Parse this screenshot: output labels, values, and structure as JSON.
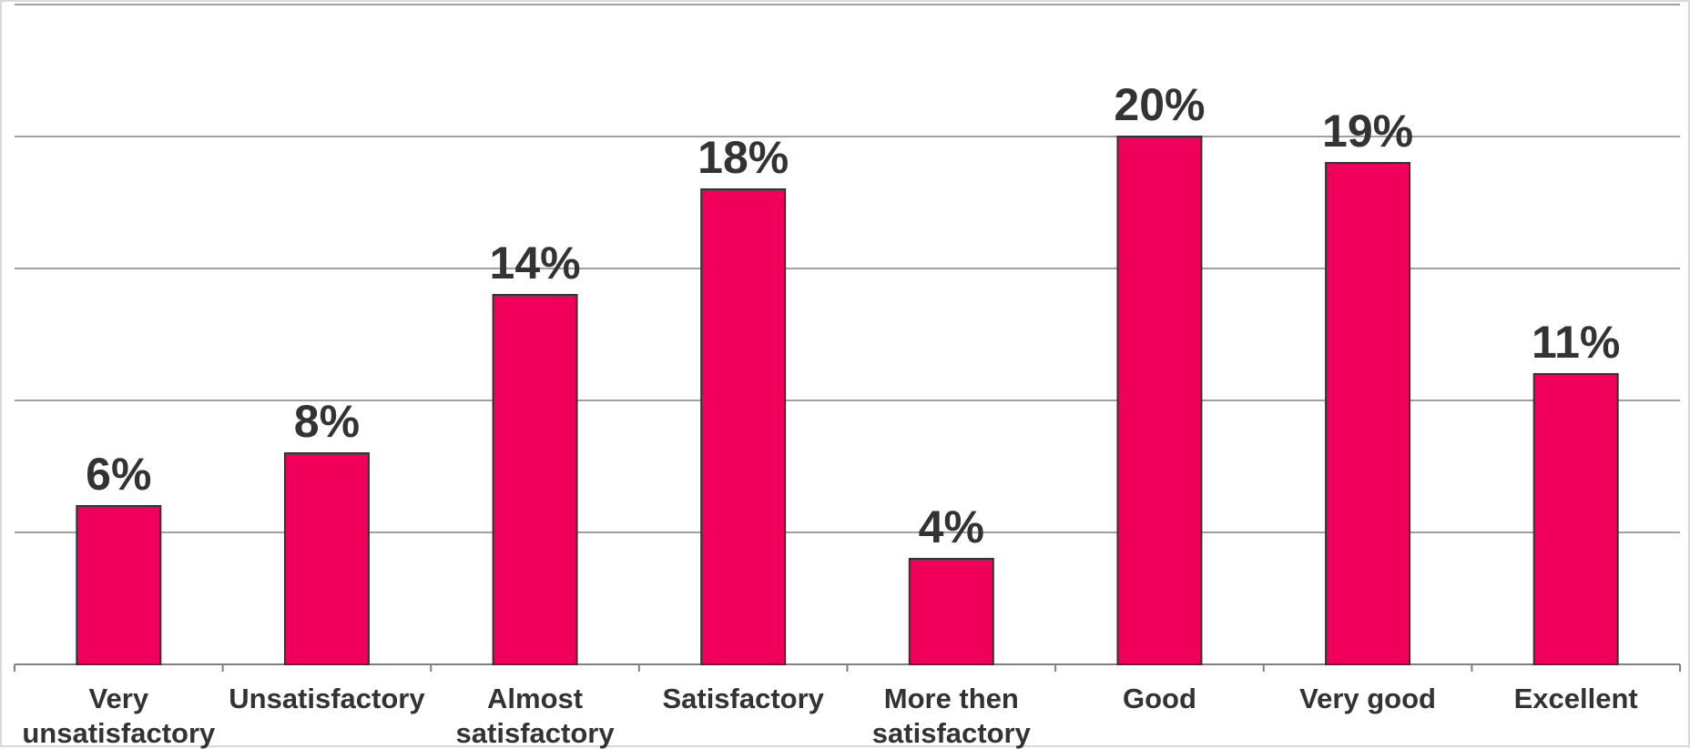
{
  "chart_data": {
    "type": "bar",
    "title": "",
    "xlabel": "",
    "ylabel": "",
    "categories": [
      [
        "Very",
        "unsatisfactory"
      ],
      [
        "Unsatisfactory"
      ],
      [
        "Almost",
        "satisfactory"
      ],
      [
        "Satisfactory"
      ],
      [
        "More then",
        "satisfactory"
      ],
      [
        "Good"
      ],
      [
        "Very good"
      ],
      [
        "Excellent"
      ]
    ],
    "values": [
      6,
      8,
      14,
      18,
      4,
      20,
      19,
      11
    ],
    "value_labels": [
      "6%",
      "8%",
      "14%",
      "18%",
      "4%",
      "20%",
      "19%",
      "11%"
    ],
    "ylim": [
      0,
      25
    ],
    "gridlines": [
      5,
      10,
      15,
      20,
      25
    ],
    "grid": true,
    "legend": "none",
    "colors": {
      "bar": "#F0005A",
      "bar_border": "#333333",
      "grid": "#808080",
      "text": "#333333"
    }
  }
}
